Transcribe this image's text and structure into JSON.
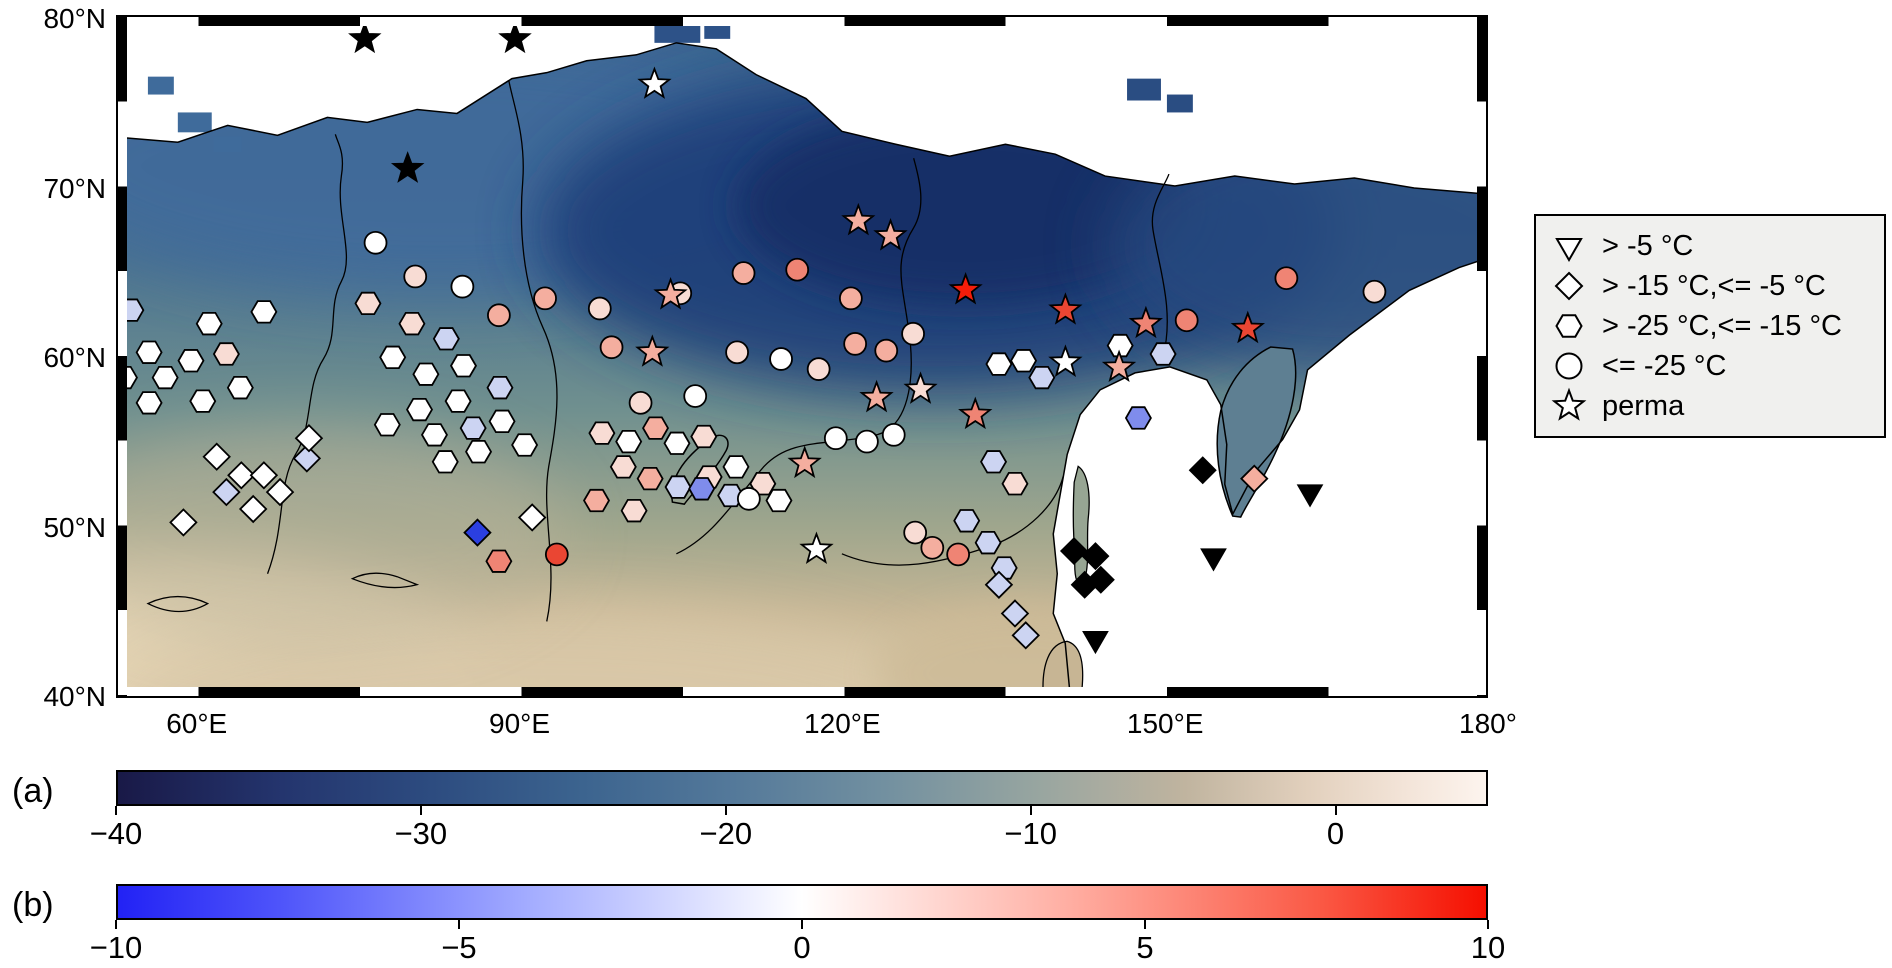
{
  "panel_labels": {
    "a": "(a)",
    "b": "(b)"
  },
  "map": {
    "extent": {
      "lon_min": 52.5,
      "lon_max": 180,
      "lat_min": 40,
      "lat_max": 80.3
    },
    "lat_ticks": [
      {
        "label": "80°N",
        "lat": 80
      },
      {
        "label": "70°N",
        "lat": 70
      },
      {
        "label": "60°N",
        "lat": 60
      },
      {
        "label": "50°N",
        "lat": 50
      },
      {
        "label": "40°N",
        "lat": 40
      }
    ],
    "lon_ticks": [
      {
        "label": "60°E",
        "lon": 60
      },
      {
        "label": "90°E",
        "lon": 90
      },
      {
        "label": "120°E",
        "lon": 120
      },
      {
        "label": "150°E",
        "lon": 150
      },
      {
        "label": "180°",
        "lon": 180
      }
    ]
  },
  "legend": {
    "items": [
      {
        "shape": "triangle-down",
        "label": "> -5 °C"
      },
      {
        "shape": "diamond",
        "label": "> -15 °C,<= -5 °C"
      },
      {
        "shape": "hexagon",
        "label": "> -25 °C,<= -15 °C"
      },
      {
        "shape": "circle",
        "label": "<= -25 °C"
      },
      {
        "shape": "star",
        "label": "perma"
      }
    ]
  },
  "colorbar_a": {
    "range": [
      -40,
      5
    ],
    "ticks": [
      {
        "label": "−40",
        "value": -40
      },
      {
        "label": "−30",
        "value": -30
      },
      {
        "label": "−20",
        "value": -20
      },
      {
        "label": "−10",
        "value": -10
      },
      {
        "label": "0",
        "value": 0
      }
    ],
    "stops": [
      [
        0,
        "#191947"
      ],
      [
        0.12,
        "#24356e"
      ],
      [
        0.23,
        "#2d4c80"
      ],
      [
        0.34,
        "#3c648f"
      ],
      [
        0.45,
        "#54799a"
      ],
      [
        0.56,
        "#7290a0"
      ],
      [
        0.67,
        "#97a5a0"
      ],
      [
        0.78,
        "#c0b49f"
      ],
      [
        0.87,
        "#e2d0bd"
      ],
      [
        0.94,
        "#f3e4d8"
      ],
      [
        1,
        "#fdf4ee"
      ]
    ]
  },
  "colorbar_b": {
    "range": [
      -10,
      10
    ],
    "ticks": [
      {
        "label": "−10",
        "value": -10
      },
      {
        "label": "−5",
        "value": -5
      },
      {
        "label": "0",
        "value": 0
      },
      {
        "label": "5",
        "value": 5
      },
      {
        "label": "10",
        "value": 10
      }
    ],
    "stops": [
      [
        0,
        "#2222f5"
      ],
      [
        0.12,
        "#4f55fa"
      ],
      [
        0.3,
        "#a3acff"
      ],
      [
        0.5,
        "#ffffff"
      ],
      [
        0.7,
        "#ffaca0"
      ],
      [
        0.88,
        "#fa5844"
      ],
      [
        1,
        "#f50f00"
      ]
    ]
  },
  "palette": {
    "W": "#ffffff",
    "PB": "#ccd4f2",
    "MB": "#7f8cec",
    "B": "#2b3fe0",
    "PP": "#f8dcd4",
    "P": "#f4ae9f",
    "S": "#ef8474",
    "R": "#ea4633",
    "BR": "#f51d0a",
    "K": "#000000"
  },
  "markers": [
    [
      75.5,
      79.0,
      "star",
      "K"
    ],
    [
      89.5,
      79.0,
      "star",
      "K"
    ],
    [
      79.5,
      71.3,
      "star",
      "K"
    ],
    [
      102.5,
      76.3,
      "star",
      "W"
    ],
    [
      121.5,
      68.2,
      "star",
      "P"
    ],
    [
      124.5,
      67.3,
      "star",
      "P"
    ],
    [
      131.5,
      64.1,
      "star",
      "BR"
    ],
    [
      140.8,
      62.9,
      "star",
      "R"
    ],
    [
      148.3,
      62.1,
      "star",
      "S"
    ],
    [
      157.8,
      61.8,
      "star",
      "R"
    ],
    [
      140.8,
      59.8,
      "star",
      "W"
    ],
    [
      145.8,
      59.5,
      "star",
      "P"
    ],
    [
      104.0,
      63.8,
      "star",
      "P"
    ],
    [
      102.3,
      60.4,
      "star",
      "P"
    ],
    [
      123.2,
      57.7,
      "star",
      "P"
    ],
    [
      127.3,
      58.2,
      "star",
      "PP"
    ],
    [
      132.4,
      56.7,
      "star",
      "S"
    ],
    [
      116.5,
      53.8,
      "star",
      "P"
    ],
    [
      117.6,
      48.7,
      "star",
      "W"
    ],
    [
      76.5,
      66.9,
      "circle",
      "W"
    ],
    [
      80.2,
      64.9,
      "circle",
      "PP"
    ],
    [
      84.6,
      64.3,
      "circle",
      "W"
    ],
    [
      88.0,
      62.6,
      "circle",
      "P"
    ],
    [
      92.3,
      63.6,
      "circle",
      "P"
    ],
    [
      97.4,
      63.0,
      "circle",
      "PP"
    ],
    [
      104.9,
      63.9,
      "circle",
      "PP"
    ],
    [
      110.8,
      65.1,
      "circle",
      "P"
    ],
    [
      115.8,
      65.3,
      "circle",
      "S"
    ],
    [
      120.8,
      63.6,
      "circle",
      "P"
    ],
    [
      98.5,
      60.7,
      "circle",
      "P"
    ],
    [
      106.3,
      57.8,
      "circle",
      "W"
    ],
    [
      101.2,
      57.4,
      "circle",
      "PP"
    ],
    [
      110.2,
      60.4,
      "circle",
      "PP"
    ],
    [
      114.3,
      60.0,
      "circle",
      "W"
    ],
    [
      117.8,
      59.4,
      "circle",
      "PP"
    ],
    [
      121.2,
      60.9,
      "circle",
      "P"
    ],
    [
      124.1,
      60.5,
      "circle",
      "P"
    ],
    [
      126.6,
      61.5,
      "circle",
      "PP"
    ],
    [
      119.4,
      55.3,
      "circle",
      "W"
    ],
    [
      122.3,
      55.1,
      "circle",
      "W"
    ],
    [
      124.8,
      55.5,
      "circle",
      "W"
    ],
    [
      126.8,
      49.7,
      "circle",
      "PP"
    ],
    [
      128.4,
      48.8,
      "circle",
      "P"
    ],
    [
      130.8,
      48.4,
      "circle",
      "S"
    ],
    [
      93.4,
      48.4,
      "circle",
      "R"
    ],
    [
      111.3,
      51.7,
      "circle",
      "W"
    ],
    [
      161.4,
      64.8,
      "circle",
      "S"
    ],
    [
      169.6,
      64.0,
      "circle",
      "PP"
    ],
    [
      152.1,
      62.3,
      "circle",
      "S"
    ],
    [
      53.7,
      62.9,
      "hexagon",
      "PB"
    ],
    [
      55.4,
      60.4,
      "hexagon",
      "W"
    ],
    [
      53.1,
      58.9,
      "hexagon",
      "W"
    ],
    [
      56.9,
      58.9,
      "hexagon",
      "W"
    ],
    [
      55.4,
      57.4,
      "hexagon",
      "W"
    ],
    [
      59.3,
      59.9,
      "hexagon",
      "W"
    ],
    [
      62.6,
      60.3,
      "hexagon",
      "PP"
    ],
    [
      61.0,
      62.1,
      "hexagon",
      "W"
    ],
    [
      66.1,
      62.8,
      "hexagon",
      "W"
    ],
    [
      60.4,
      57.5,
      "hexagon",
      "W"
    ],
    [
      63.9,
      58.3,
      "hexagon",
      "W"
    ],
    [
      75.8,
      63.3,
      "hexagon",
      "PP"
    ],
    [
      79.9,
      62.1,
      "hexagon",
      "PP"
    ],
    [
      83.1,
      61.2,
      "hexagon",
      "PB"
    ],
    [
      78.1,
      60.1,
      "hexagon",
      "W"
    ],
    [
      81.2,
      59.1,
      "hexagon",
      "W"
    ],
    [
      84.7,
      59.6,
      "hexagon",
      "W"
    ],
    [
      88.1,
      58.3,
      "hexagon",
      "PB"
    ],
    [
      84.2,
      57.5,
      "hexagon",
      "W"
    ],
    [
      80.6,
      57.0,
      "hexagon",
      "W"
    ],
    [
      77.6,
      56.1,
      "hexagon",
      "W"
    ],
    [
      82.0,
      55.5,
      "hexagon",
      "W"
    ],
    [
      85.6,
      55.9,
      "hexagon",
      "PB"
    ],
    [
      88.3,
      56.3,
      "hexagon",
      "W"
    ],
    [
      86.1,
      54.5,
      "hexagon",
      "W"
    ],
    [
      83.0,
      53.9,
      "hexagon",
      "W"
    ],
    [
      90.4,
      54.9,
      "hexagon",
      "W"
    ],
    [
      88.0,
      48.0,
      "hexagon",
      "S"
    ],
    [
      97.6,
      55.6,
      "hexagon",
      "PP"
    ],
    [
      100.1,
      55.1,
      "hexagon",
      "W"
    ],
    [
      102.6,
      55.9,
      "hexagon",
      "P"
    ],
    [
      104.6,
      55.0,
      "hexagon",
      "W"
    ],
    [
      107.1,
      55.4,
      "hexagon",
      "PP"
    ],
    [
      99.6,
      53.6,
      "hexagon",
      "PP"
    ],
    [
      102.1,
      52.9,
      "hexagon",
      "P"
    ],
    [
      104.7,
      52.4,
      "hexagon",
      "PB"
    ],
    [
      107.6,
      53.0,
      "hexagon",
      "PP"
    ],
    [
      110.1,
      53.6,
      "hexagon",
      "W"
    ],
    [
      97.1,
      51.6,
      "hexagon",
      "P"
    ],
    [
      100.6,
      51.0,
      "hexagon",
      "PP"
    ],
    [
      106.9,
      52.3,
      "hexagon",
      "MB"
    ],
    [
      109.6,
      51.9,
      "hexagon",
      "PB"
    ],
    [
      112.6,
      52.6,
      "hexagon",
      "PP"
    ],
    [
      114.1,
      51.6,
      "hexagon",
      "W"
    ],
    [
      134.6,
      59.7,
      "hexagon",
      "W"
    ],
    [
      136.9,
      59.9,
      "hexagon",
      "W"
    ],
    [
      138.6,
      58.9,
      "hexagon",
      "PB"
    ],
    [
      145.9,
      60.8,
      "hexagon",
      "W"
    ],
    [
      149.9,
      60.3,
      "hexagon",
      "PB"
    ],
    [
      147.6,
      56.5,
      "hexagon",
      "MB"
    ],
    [
      134.1,
      53.9,
      "hexagon",
      "PB"
    ],
    [
      136.1,
      52.6,
      "hexagon",
      "PP"
    ],
    [
      131.6,
      50.4,
      "hexagon",
      "PB"
    ],
    [
      133.6,
      49.1,
      "hexagon",
      "PB"
    ],
    [
      135.1,
      47.6,
      "hexagon",
      "PB"
    ],
    [
      61.7,
      54.2,
      "diamond",
      "W"
    ],
    [
      64.0,
      53.1,
      "diamond",
      "W"
    ],
    [
      62.6,
      52.1,
      "diamond",
      "PB"
    ],
    [
      66.1,
      53.1,
      "diamond",
      "W"
    ],
    [
      67.6,
      52.1,
      "diamond",
      "W"
    ],
    [
      65.1,
      51.1,
      "diamond",
      "W"
    ],
    [
      58.6,
      50.3,
      "diamond",
      "W"
    ],
    [
      70.1,
      54.1,
      "diamond",
      "PB"
    ],
    [
      70.3,
      55.3,
      "diamond",
      "W"
    ],
    [
      86.0,
      49.7,
      "diamond",
      "B"
    ],
    [
      91.1,
      50.6,
      "diamond",
      "W"
    ],
    [
      134.6,
      46.6,
      "diamond",
      "PB"
    ],
    [
      136.1,
      44.9,
      "diamond",
      "PB"
    ],
    [
      137.1,
      43.6,
      "diamond",
      "PB"
    ],
    [
      141.6,
      48.6,
      "diamond",
      "K"
    ],
    [
      143.6,
      48.3,
      "diamond",
      "K"
    ],
    [
      142.6,
      46.6,
      "diamond",
      "K"
    ],
    [
      144.1,
      46.9,
      "diamond",
      "K"
    ],
    [
      153.6,
      53.4,
      "diamond",
      "K"
    ],
    [
      158.4,
      52.9,
      "diamond",
      "P"
    ],
    [
      163.6,
      52.1,
      "triangle-down",
      "K"
    ],
    [
      154.6,
      48.3,
      "triangle-down",
      "K"
    ],
    [
      143.6,
      43.4,
      "triangle-down",
      "K"
    ]
  ]
}
